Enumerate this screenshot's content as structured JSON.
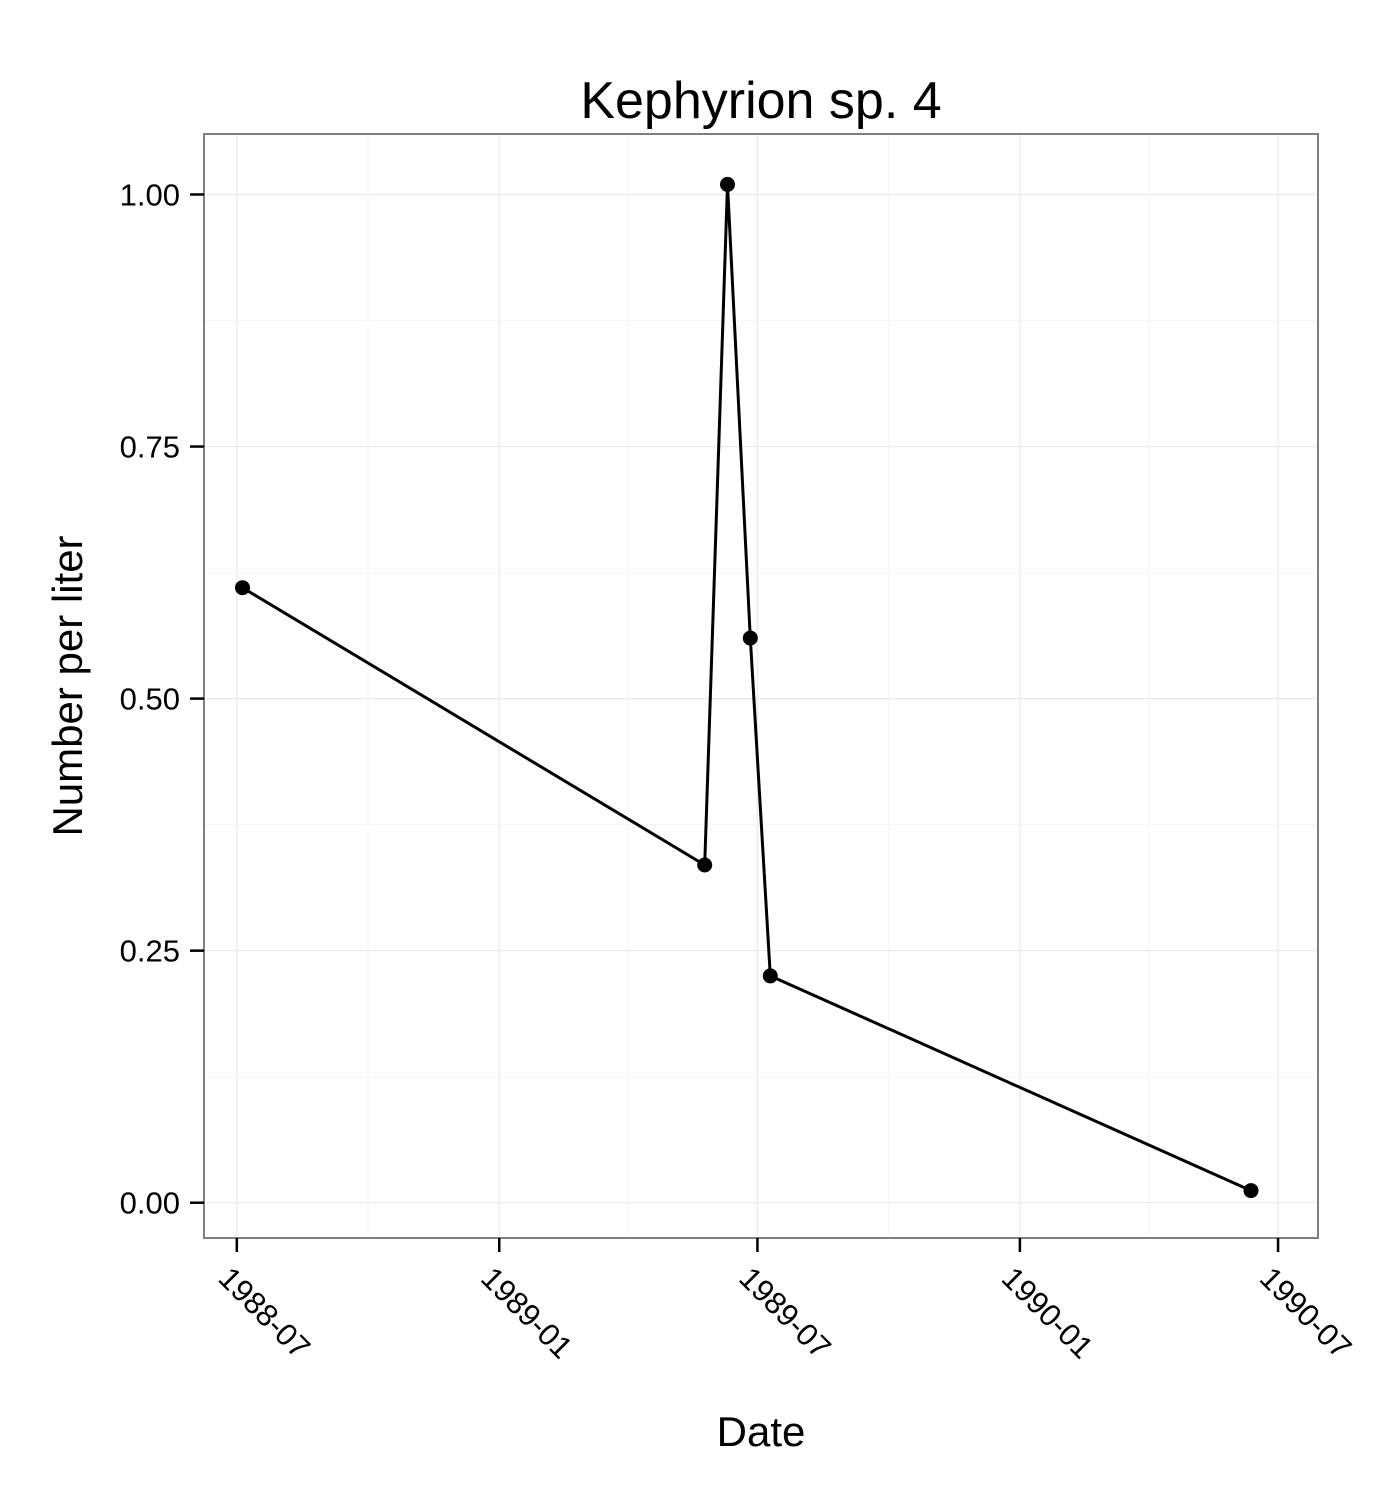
{
  "chart_data": {
    "type": "line",
    "title": "Kephyrion sp. 4",
    "xlabel": "Date",
    "ylabel": "Number per liter",
    "x_ticks": [
      "1988-07",
      "1989-01",
      "1989-07",
      "1990-01",
      "1990-07"
    ],
    "y_ticks": [
      "0.00",
      "0.25",
      "0.50",
      "0.75",
      "1.00"
    ],
    "xlim": [
      "1988-06-08",
      "1990-07-29"
    ],
    "ylim": [
      -0.035,
      1.06
    ],
    "grid": true,
    "series": [
      {
        "color": "#000000",
        "points": [
          {
            "x": "1988-07-05",
            "y": 0.61
          },
          {
            "x": "1989-05-25",
            "y": 0.335
          },
          {
            "x": "1989-06-10",
            "y": 1.01
          },
          {
            "x": "1989-06-26",
            "y": 0.56
          },
          {
            "x": "1989-07-10",
            "y": 0.225
          },
          {
            "x": "1990-06-12",
            "y": 0.012
          }
        ]
      }
    ]
  }
}
